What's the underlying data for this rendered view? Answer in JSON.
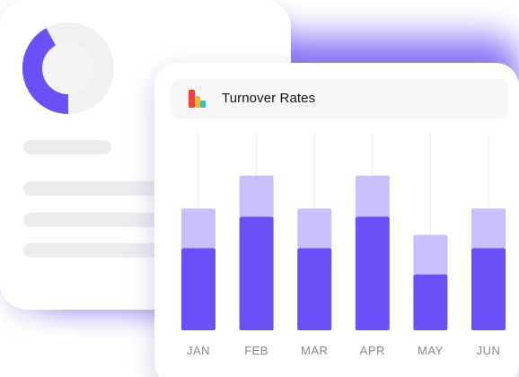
{
  "chart_card": {
    "title": "Turnover Rates",
    "title_icon": "bar-chart-icon"
  },
  "colors": {
    "accent": "#6c4ff6",
    "accent_light": "#c9bffc",
    "backdrop": "#7a63f5",
    "donut_track": "#f1f1f4",
    "icon_red": "#e8453c",
    "icon_yellow": "#f2b731",
    "icon_teal": "#2ec4b6"
  },
  "chart_data": {
    "type": "bar",
    "stacked": true,
    "categories": [
      "JAN",
      "FEB",
      "MAR",
      "APR",
      "MAY",
      "JUN"
    ],
    "series": [
      {
        "values": [
          50,
          69,
          50,
          69,
          34,
          50
        ]
      },
      {
        "values": [
          24,
          25,
          24,
          25,
          24,
          24
        ]
      }
    ],
    "title": "",
    "xlabel": "",
    "ylabel": "",
    "ylim": [
      0,
      120
    ],
    "grid": "vertical"
  },
  "donut": {
    "icon": "donut-chart-icon",
    "filled_fraction": 0.42
  }
}
